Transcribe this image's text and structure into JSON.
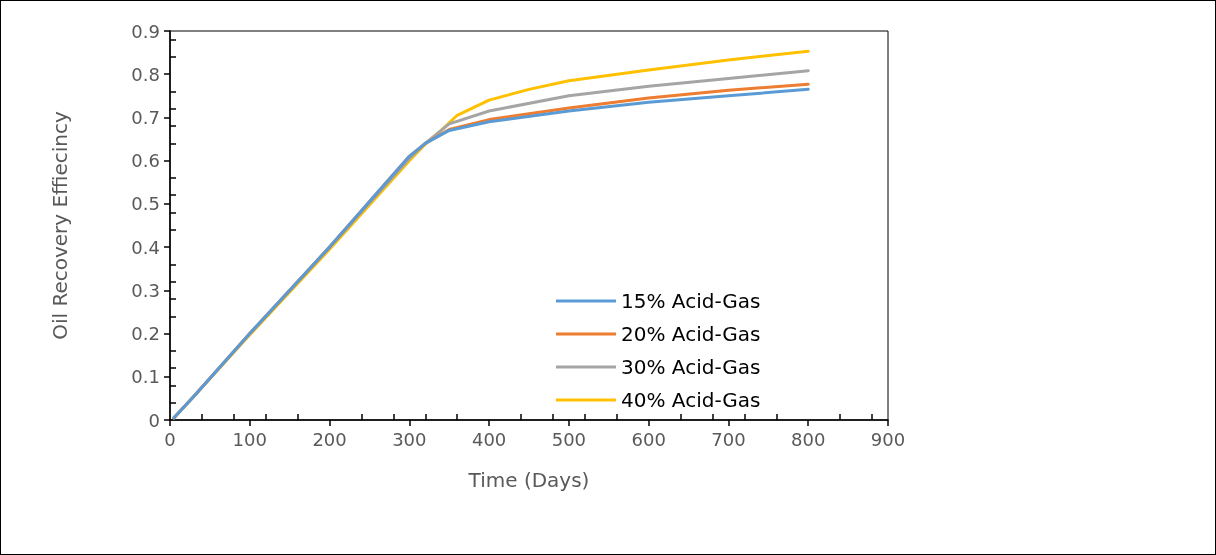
{
  "chart_data": {
    "type": "line",
    "xlabel": "Time (Days)",
    "ylabel": "Oil Recovery Effiecincy",
    "xlim": [
      0,
      900
    ],
    "xticks": [
      0,
      100,
      200,
      300,
      400,
      500,
      600,
      700,
      800,
      900
    ],
    "ylim": [
      0,
      0.9
    ],
    "yticks": [
      0,
      0.1,
      0.2,
      0.3,
      0.4,
      0.5,
      0.6,
      0.7,
      0.8,
      0.9
    ],
    "grid": false,
    "legend": "bottom right",
    "marker": "none",
    "line_style": "solid",
    "series": [
      {
        "name": "15% Acid-Gas",
        "color": "#5b9bd5",
        "x": [
          5,
          30,
          100,
          200,
          300,
          320,
          350,
          400,
          500,
          600,
          700,
          800
        ],
        "values": [
          0.005,
          0.055,
          0.2,
          0.4,
          0.61,
          0.64,
          0.67,
          0.69,
          0.715,
          0.735,
          0.75,
          0.765
        ]
      },
      {
        "name": "20% Acid-Gas",
        "color": "#ed7d31",
        "x": [
          5,
          30,
          100,
          200,
          300,
          320,
          350,
          400,
          500,
          600,
          700,
          800
        ],
        "values": [
          0.005,
          0.055,
          0.2,
          0.4,
          0.61,
          0.64,
          0.672,
          0.695,
          0.722,
          0.745,
          0.763,
          0.777
        ]
      },
      {
        "name": "30% Acid-Gas",
        "color": "#a5a5a5",
        "x": [
          5,
          30,
          100,
          200,
          300,
          320,
          350,
          400,
          500,
          600,
          700,
          800
        ],
        "values": [
          0.005,
          0.055,
          0.2,
          0.4,
          0.605,
          0.64,
          0.685,
          0.715,
          0.75,
          0.772,
          0.79,
          0.808
        ]
      },
      {
        "name": "40% Acid-Gas",
        "color": "#ffc000",
        "x": [
          5,
          30,
          100,
          200,
          300,
          320,
          340,
          360,
          400,
          450,
          500,
          600,
          700,
          800
        ],
        "values": [
          0.005,
          0.055,
          0.197,
          0.395,
          0.6,
          0.638,
          0.67,
          0.705,
          0.74,
          0.765,
          0.785,
          0.81,
          0.833,
          0.853
        ]
      }
    ]
  }
}
